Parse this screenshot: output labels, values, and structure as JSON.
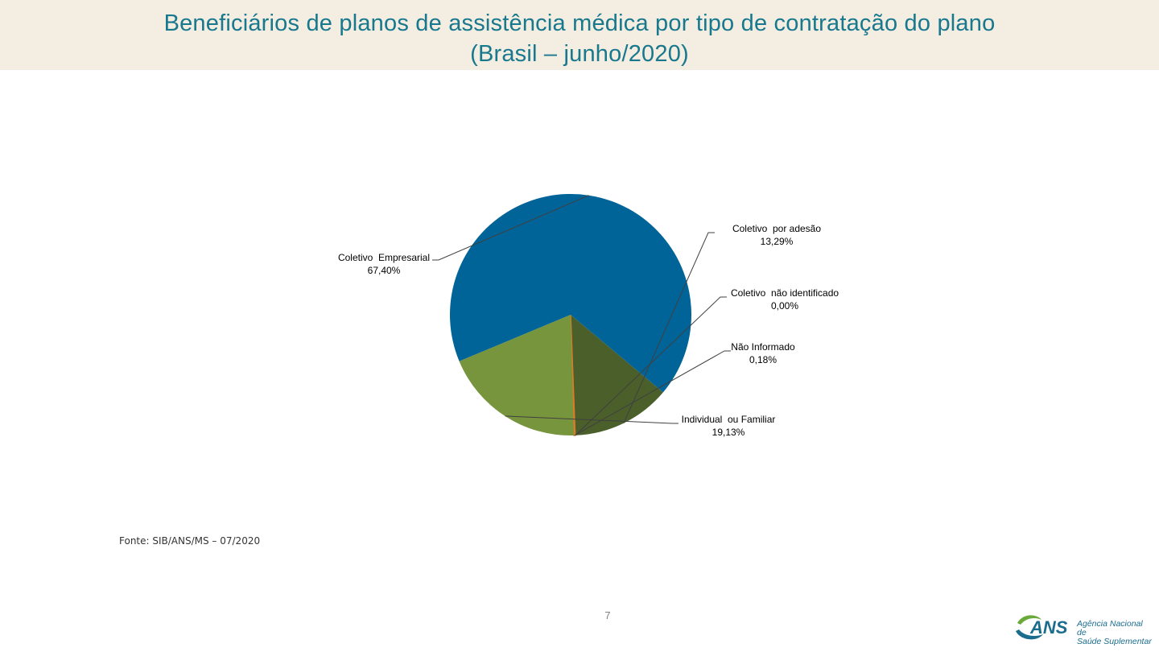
{
  "header": {
    "title_line1": "Beneficiários de planos de assistência médica por tipo de contratação do plano",
    "title_line2": "(Brasil – junho/2020)"
  },
  "chart_data": {
    "type": "pie",
    "slices": [
      {
        "name": "Coletivo  por adesão",
        "label": "13,29%",
        "value": 13.29,
        "color": "#4b5f2a"
      },
      {
        "name": "Coletivo  não identificado",
        "label": "0,00%",
        "value": 0.0,
        "color": "#c0504d"
      },
      {
        "name": "Não Informado",
        "label": "0,18%",
        "value": 0.18,
        "color": "#e07b24"
      },
      {
        "name": "Individual  ou Familiar",
        "label": "19,13%",
        "value": 19.13,
        "color": "#77953d"
      },
      {
        "name": "Coletivo  Empresarial",
        "label": "67,40%",
        "value": 67.4,
        "color": "#006498"
      }
    ]
  },
  "footer": {
    "source": "Fonte: SIB/ANS/MS – 07/2020",
    "page_number": "7"
  },
  "logo": {
    "acronym": "ANS",
    "line1": "Agência Nacional de",
    "line2": "Saúde Suplementar"
  }
}
